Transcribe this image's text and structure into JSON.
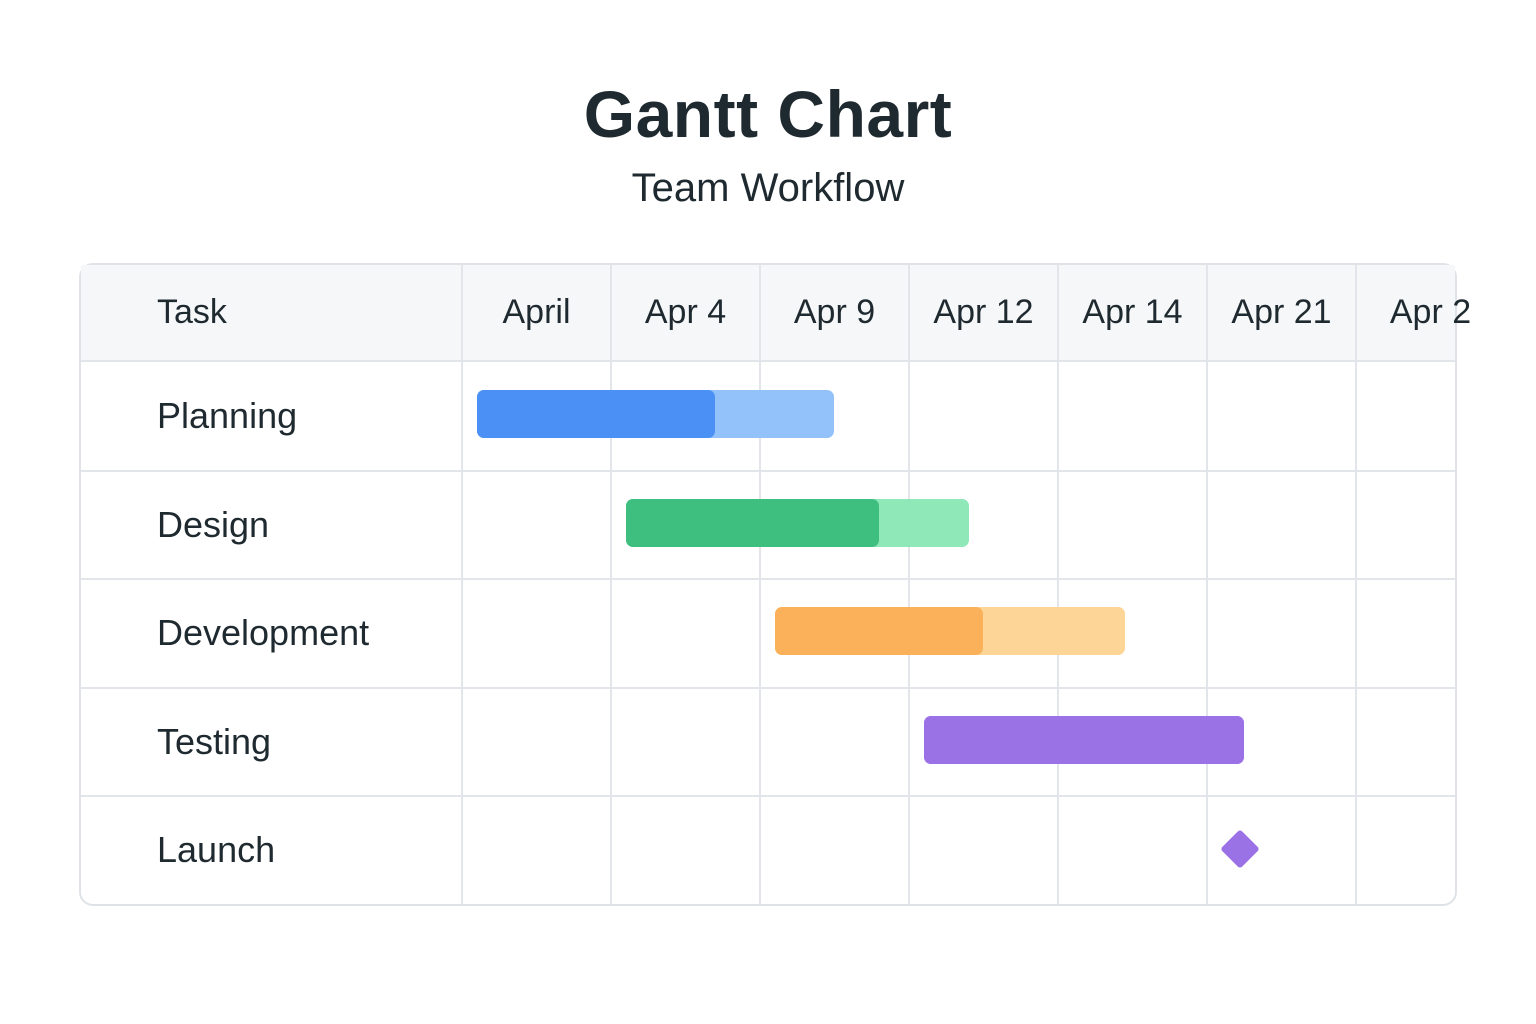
{
  "chart_data": {
    "type": "gantt",
    "title": "Gantt Chart",
    "subtitle": "Team Workflow",
    "task_column_header": "Task",
    "timeline_columns": [
      "April",
      "Apr 4",
      "Apr 9",
      "Apr 12",
      "Apr 14",
      "Apr 21",
      "Apr 2"
    ],
    "tasks": [
      {
        "name": "Planning",
        "start": 0.1,
        "end": 2.5,
        "progress_end": 1.7,
        "color": "#4a90f5",
        "bg_color": "#93c1fa",
        "milestone": false
      },
      {
        "name": "Design",
        "start": 1.1,
        "end": 3.4,
        "progress_end": 2.8,
        "color": "#3fbf7f",
        "bg_color": "#8fe8b8",
        "milestone": false
      },
      {
        "name": "Development",
        "start": 2.1,
        "end": 4.45,
        "progress_end": 3.5,
        "color": "#fbb15a",
        "bg_color": "#fdd597",
        "milestone": false
      },
      {
        "name": "Testing",
        "start": 3.1,
        "end": 5.25,
        "progress_end": 5.25,
        "color": "#9b72e6",
        "bg_color": "#9b72e6",
        "milestone": false
      },
      {
        "name": "Launch",
        "start": 5.22,
        "end": 5.22,
        "progress_end": 5.22,
        "color": "#9b72e6",
        "bg_color": "#9b72e6",
        "milestone": true
      }
    ]
  }
}
